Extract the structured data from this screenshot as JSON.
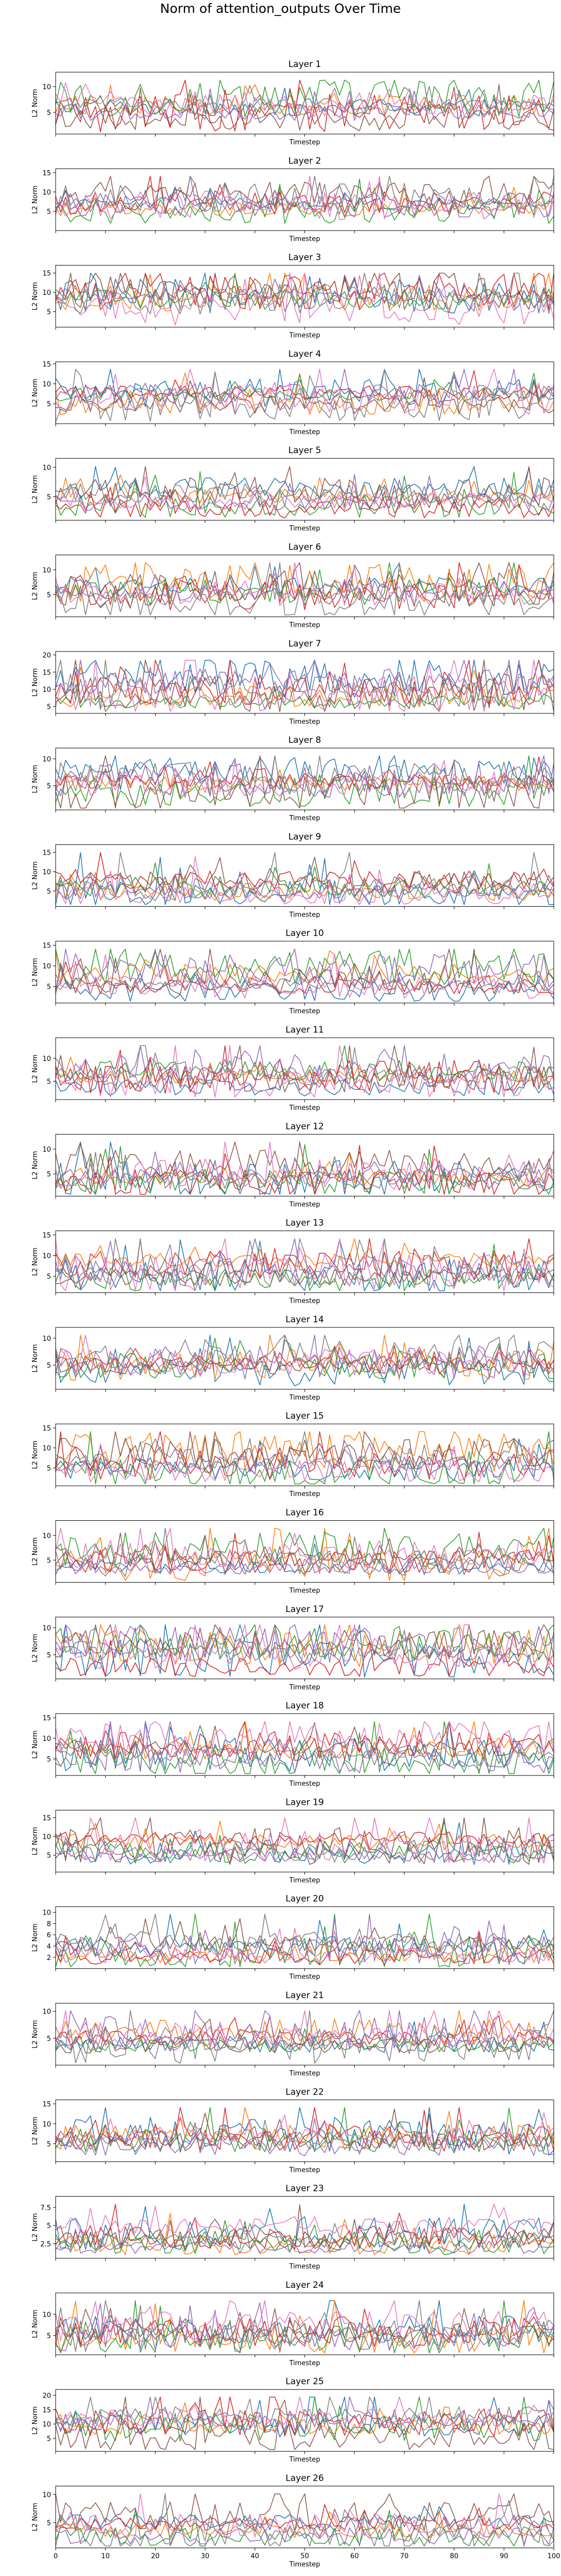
{
  "figure_title": "Norm of attention_outputs Over Time",
  "palette": [
    "#1f77b4",
    "#ff7f0e",
    "#2ca02c",
    "#d62728",
    "#9467bd",
    "#8c564b",
    "#e377c2",
    "#7f7f7f"
  ],
  "chart_data": [
    {
      "type": "line",
      "title": "Layer 1",
      "xlabel": "Timestep",
      "ylabel": "L2 Norm",
      "xlim": [
        0,
        100
      ],
      "ylim": [
        0.8,
        12.8
      ],
      "yticks": [
        5,
        10
      ],
      "xticks": [],
      "grid": false
    },
    {
      "type": "line",
      "title": "Layer 2",
      "xlabel": "Timestep",
      "ylabel": "L2 Norm",
      "xlim": [
        0,
        100
      ],
      "ylim": [
        0,
        16
      ],
      "yticks": [
        5,
        10,
        15
      ],
      "xticks": [],
      "grid": false
    },
    {
      "type": "line",
      "title": "Layer 3",
      "xlabel": "Timestep",
      "ylabel": "L2 Norm",
      "xlim": [
        0,
        100
      ],
      "ylim": [
        1,
        17
      ],
      "yticks": [
        5,
        10,
        15
      ],
      "xticks": [],
      "grid": false
    },
    {
      "type": "line",
      "title": "Layer 4",
      "xlabel": "Timestep",
      "ylabel": "L2 Norm",
      "xlim": [
        0,
        100
      ],
      "ylim": [
        0,
        15.5
      ],
      "yticks": [
        5,
        10,
        15
      ],
      "xticks": [],
      "grid": false
    },
    {
      "type": "line",
      "title": "Layer 5",
      "xlabel": "Timestep",
      "ylabel": "L2 Norm",
      "xlim": [
        0,
        100
      ],
      "ylim": [
        1,
        11.5
      ],
      "yticks": [
        5,
        10
      ],
      "xticks": [],
      "grid": false
    },
    {
      "type": "line",
      "title": "Layer 6",
      "xlabel": "Timestep",
      "ylabel": "L2 Norm",
      "xlim": [
        0,
        100
      ],
      "ylim": [
        0.5,
        13
      ],
      "yticks": [
        5,
        10
      ],
      "xticks": [],
      "grid": false
    },
    {
      "type": "line",
      "title": "Layer 7",
      "xlabel": "Timestep",
      "ylabel": "L2 Norm",
      "xlim": [
        0,
        100
      ],
      "ylim": [
        3,
        21
      ],
      "yticks": [
        5,
        10,
        15,
        20
      ],
      "xticks": [],
      "grid": false
    },
    {
      "type": "line",
      "title": "Layer 8",
      "xlabel": "Timestep",
      "ylabel": "L2 Norm",
      "xlim": [
        0,
        100
      ],
      "ylim": [
        0.5,
        12
      ],
      "yticks": [
        5,
        10
      ],
      "xticks": [],
      "grid": false
    },
    {
      "type": "line",
      "title": "Layer 9",
      "xlabel": "Timestep",
      "ylabel": "L2 Norm",
      "xlim": [
        0,
        100
      ],
      "ylim": [
        1,
        17
      ],
      "yticks": [
        5,
        10,
        15
      ],
      "xticks": [],
      "grid": false
    },
    {
      "type": "line",
      "title": "Layer 10",
      "xlabel": "Timestep",
      "ylabel": "L2 Norm",
      "xlim": [
        0,
        100
      ],
      "ylim": [
        1,
        16
      ],
      "yticks": [
        5,
        10,
        15
      ],
      "xticks": [],
      "grid": false
    },
    {
      "type": "line",
      "title": "Layer 11",
      "xlabel": "Timestep",
      "ylabel": "L2 Norm",
      "xlim": [
        0,
        100
      ],
      "ylim": [
        1,
        14.5
      ],
      "yticks": [
        5,
        10
      ],
      "xticks": [],
      "grid": false
    },
    {
      "type": "line",
      "title": "Layer 12",
      "xlabel": "Timestep",
      "ylabel": "L2 Norm",
      "xlim": [
        0,
        100
      ],
      "ylim": [
        0.5,
        13
      ],
      "yticks": [
        5,
        10
      ],
      "xticks": [],
      "grid": false
    },
    {
      "type": "line",
      "title": "Layer 13",
      "xlabel": "Timestep",
      "ylabel": "L2 Norm",
      "xlim": [
        0,
        100
      ],
      "ylim": [
        1,
        16
      ],
      "yticks": [
        5,
        10,
        15
      ],
      "xticks": [],
      "grid": false
    },
    {
      "type": "line",
      "title": "Layer 14",
      "xlabel": "Timestep",
      "ylabel": "L2 Norm",
      "xlim": [
        0,
        100
      ],
      "ylim": [
        0.5,
        12
      ],
      "yticks": [
        5,
        10
      ],
      "xticks": [],
      "grid": false
    },
    {
      "type": "line",
      "title": "Layer 15",
      "xlabel": "Timestep",
      "ylabel": "L2 Norm",
      "xlim": [
        0,
        100
      ],
      "ylim": [
        0.5,
        16
      ],
      "yticks": [
        5,
        10,
        15
      ],
      "xticks": [],
      "grid": false
    },
    {
      "type": "line",
      "title": "Layer 16",
      "xlabel": "Timestep",
      "ylabel": "L2 Norm",
      "xlim": [
        0,
        100
      ],
      "ylim": [
        0.5,
        13
      ],
      "yticks": [
        5,
        10
      ],
      "xticks": [],
      "grid": false
    },
    {
      "type": "line",
      "title": "Layer 17",
      "xlabel": "Timestep",
      "ylabel": "L2 Norm",
      "xlim": [
        0,
        100
      ],
      "ylim": [
        0.5,
        12
      ],
      "yticks": [
        5,
        10
      ],
      "xticks": [],
      "grid": false
    },
    {
      "type": "line",
      "title": "Layer 18",
      "xlabel": "Timestep",
      "ylabel": "L2 Norm",
      "xlim": [
        0,
        100
      ],
      "ylim": [
        1,
        16
      ],
      "yticks": [
        5,
        10,
        15
      ],
      "xticks": [],
      "grid": false
    },
    {
      "type": "line",
      "title": "Layer 19",
      "xlabel": "Timestep",
      "ylabel": "L2 Norm",
      "xlim": [
        0,
        100
      ],
      "ylim": [
        0.5,
        17
      ],
      "yticks": [
        5,
        10,
        15
      ],
      "xticks": [],
      "grid": false
    },
    {
      "type": "line",
      "title": "Layer 20",
      "xlabel": "Timestep",
      "ylabel": "L2 Norm",
      "xlim": [
        0,
        100
      ],
      "ylim": [
        0,
        11
      ],
      "yticks": [
        2,
        4,
        6,
        8,
        10
      ],
      "xticks": [],
      "grid": false
    },
    {
      "type": "line",
      "title": "Layer 21",
      "xlabel": "Timestep",
      "ylabel": "L2 Norm",
      "xlim": [
        0,
        100
      ],
      "ylim": [
        0,
        11.5
      ],
      "yticks": [
        5,
        10
      ],
      "xticks": [],
      "grid": false
    },
    {
      "type": "line",
      "title": "Layer 22",
      "xlabel": "Timestep",
      "ylabel": "L2 Norm",
      "xlim": [
        0,
        100
      ],
      "ylim": [
        0.5,
        16
      ],
      "yticks": [
        5,
        10,
        15
      ],
      "xticks": [],
      "grid": false
    },
    {
      "type": "line",
      "title": "Layer 23",
      "xlabel": "Timestep",
      "ylabel": "L2 Norm",
      "xlim": [
        0,
        100
      ],
      "ylim": [
        0.5,
        9
      ],
      "yticks": [
        2.5,
        5.0,
        7.5
      ],
      "xticks": [],
      "grid": false
    },
    {
      "type": "line",
      "title": "Layer 24",
      "xlabel": "Timestep",
      "ylabel": "L2 Norm",
      "xlim": [
        0,
        100
      ],
      "ylim": [
        0.5,
        15
      ],
      "yticks": [
        5,
        10
      ],
      "xticks": [],
      "grid": false
    },
    {
      "type": "line",
      "title": "Layer 25",
      "xlabel": "Timestep",
      "ylabel": "L2 Norm",
      "xlim": [
        0,
        100
      ],
      "ylim": [
        0.5,
        22
      ],
      "yticks": [
        5,
        10,
        15,
        20
      ],
      "xticks": [],
      "grid": false
    },
    {
      "type": "line",
      "title": "Layer 26",
      "xlabel": "Timestep",
      "ylabel": "L2 Norm",
      "xlim": [
        0,
        100
      ],
      "ylim": [
        0.5,
        11.5
      ],
      "yticks": [
        5,
        10
      ],
      "xticks": [
        0,
        10,
        20,
        30,
        40,
        50,
        60,
        70,
        80,
        90,
        100
      ],
      "grid": false
    }
  ]
}
